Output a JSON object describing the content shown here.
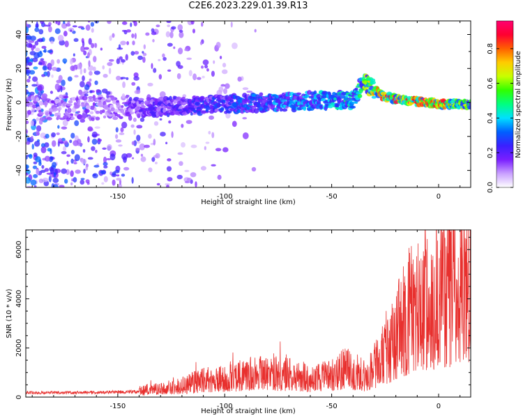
{
  "page_title": "C2E6.2023.229.01.39.R13",
  "chart_data": [
    {
      "type": "heatmap",
      "xlabel": "Height of straight line (km)",
      "ylabel": "Frequency (Hz)",
      "xlim": [
        -193,
        15
      ],
      "ylim": [
        -50,
        48
      ],
      "x_ticks": [
        -150,
        -100,
        -50,
        0
      ],
      "y_ticks": [
        -40,
        -20,
        0,
        20,
        40
      ],
      "colorbar": {
        "label": "Normalized spectral amplitude",
        "range": [
          0,
          0.96
        ],
        "ticks": [
          0.0,
          0.2,
          0.4,
          0.6,
          0.8
        ],
        "colors": [
          "#ffffff",
          "#c9a0ff",
          "#7a1fff",
          "#3a20ff",
          "#0060ff",
          "#00e0ff",
          "#00ff80",
          "#30ff00",
          "#c8ff00",
          "#ffcc00",
          "#ff6000",
          "#ff0030",
          "#ff0070"
        ]
      },
      "ridge_center_hz": [
        {
          "x": -140,
          "y": -3
        },
        {
          "x": -100,
          "y": -1
        },
        {
          "x": -60,
          "y": 1
        },
        {
          "x": -40,
          "y": 1.5
        },
        {
          "x": -35,
          "y": 12
        },
        {
          "x": -25,
          "y": 3
        },
        {
          "x": -10,
          "y": 0.5
        },
        {
          "x": 0,
          "y": -1
        },
        {
          "x": 15,
          "y": -1
        }
      ],
      "ridge_amplitude": [
        {
          "x": -140,
          "y": 0.2
        },
        {
          "x": -100,
          "y": 0.3
        },
        {
          "x": -60,
          "y": 0.4
        },
        {
          "x": -40,
          "y": 0.45
        },
        {
          "x": -25,
          "y": 0.85
        },
        {
          "x": -10,
          "y": 0.9
        },
        {
          "x": 0,
          "y": 0.85
        },
        {
          "x": 15,
          "y": 0.6
        }
      ]
    },
    {
      "type": "line",
      "xlabel": "Height of straight line (km)",
      "ylabel": "SNR (10 * v/v)",
      "xlim": [
        -193,
        15
      ],
      "ylim": [
        0,
        6800
      ],
      "x_ticks": [
        -150,
        -100,
        -50,
        0
      ],
      "y_ticks": [
        0,
        2000,
        4000,
        6000
      ],
      "series": [
        {
          "color": "#e8302e",
          "envelope": [
            {
              "x": -193,
              "y": 220
            },
            {
              "x": -170,
              "y": 220
            },
            {
              "x": -150,
              "y": 250
            },
            {
              "x": -140,
              "y": 280
            },
            {
              "x": -130,
              "y": 380
            },
            {
              "x": -120,
              "y": 500
            },
            {
              "x": -110,
              "y": 700
            },
            {
              "x": -100,
              "y": 850
            },
            {
              "x": -90,
              "y": 950
            },
            {
              "x": -80,
              "y": 1000
            },
            {
              "x": -70,
              "y": 950
            },
            {
              "x": -60,
              "y": 800
            },
            {
              "x": -50,
              "y": 900
            },
            {
              "x": -45,
              "y": 1200
            },
            {
              "x": -40,
              "y": 1100
            },
            {
              "x": -35,
              "y": 900
            },
            {
              "x": -30,
              "y": 1300
            },
            {
              "x": -25,
              "y": 2000
            },
            {
              "x": -20,
              "y": 2800
            },
            {
              "x": -15,
              "y": 3500
            },
            {
              "x": -10,
              "y": 3800
            },
            {
              "x": -5,
              "y": 4000
            },
            {
              "x": 0,
              "y": 4300
            },
            {
              "x": 5,
              "y": 4600
            },
            {
              "x": 10,
              "y": 4800
            },
            {
              "x": 15,
              "y": 4700
            }
          ]
        }
      ]
    }
  ]
}
